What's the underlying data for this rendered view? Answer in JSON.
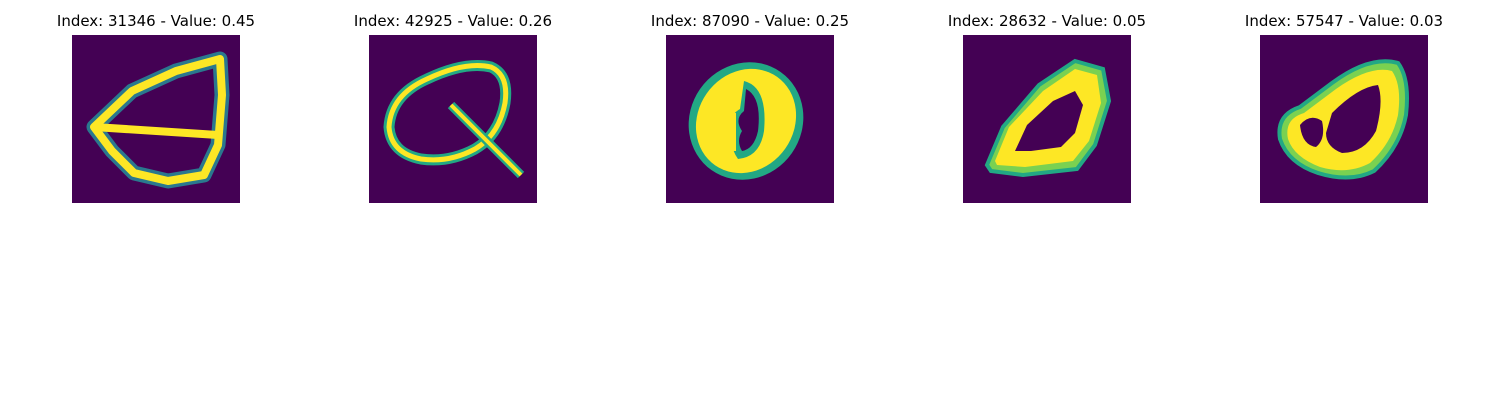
{
  "figure": {
    "background": "#ffffff"
  },
  "panels": [
    {
      "title": "Index: 31346 - Value: 0.45",
      "index": 31346,
      "value": 0.45,
      "image": "digit-zero-open-left"
    },
    {
      "title": "Index: 42925 - Value: 0.26",
      "index": 42925,
      "value": 0.26,
      "image": "digit-looped-tail"
    },
    {
      "title": "Index: 87090 - Value: 0.25",
      "index": 87090,
      "value": 0.25,
      "image": "digit-zero-filled-inner"
    },
    {
      "title": "Index: 28632 - Value: 0.05",
      "index": 28632,
      "value": 0.05,
      "image": "digit-zero-bold"
    },
    {
      "title": "Index: 57547 - Value: 0.03",
      "index": 57547,
      "value": 0.03,
      "image": "digit-zero-inner-loop"
    }
  ],
  "colormap": {
    "background": "#440154",
    "low": "#2a788e",
    "mid": "#22a884",
    "high": "#7ad151",
    "peak": "#fde725"
  }
}
